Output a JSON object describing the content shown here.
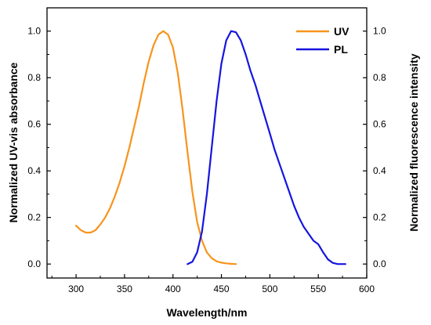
{
  "chart_data": {
    "type": "line",
    "xlabel": "Wavelength/nm",
    "ylabel_left": "Normalized UV-vis absorbance",
    "ylabel_right": "Normalized fluorescence intensity",
    "xlim": [
      270,
      600
    ],
    "ylim": [
      -0.06,
      1.1
    ],
    "x_ticks": [
      300,
      350,
      400,
      450,
      500,
      550,
      600
    ],
    "x_tick_labels": [
      "300",
      "350",
      "400",
      "450",
      "500",
      "550",
      "600"
    ],
    "y_ticks": [
      0.0,
      0.2,
      0.4,
      0.6,
      0.8,
      1.0
    ],
    "y_tick_labels": [
      "0.0",
      "0.2",
      "0.4",
      "0.6",
      "0.8",
      "1.0"
    ],
    "legend_position": "top-right",
    "series": [
      {
        "name": "UV",
        "color": "#F7941D",
        "x": [
          300,
          305,
          310,
          315,
          320,
          325,
          330,
          335,
          340,
          345,
          350,
          355,
          360,
          365,
          370,
          375,
          380,
          385,
          390,
          395,
          400,
          405,
          410,
          415,
          420,
          425,
          430,
          435,
          440,
          445,
          450,
          455,
          460,
          465
        ],
        "y": [
          0.165,
          0.145,
          0.135,
          0.135,
          0.145,
          0.17,
          0.2,
          0.24,
          0.29,
          0.35,
          0.42,
          0.5,
          0.59,
          0.68,
          0.78,
          0.87,
          0.94,
          0.985,
          1.0,
          0.985,
          0.93,
          0.82,
          0.66,
          0.48,
          0.31,
          0.18,
          0.1,
          0.05,
          0.025,
          0.012,
          0.006,
          0.003,
          0.001,
          0.0
        ]
      },
      {
        "name": "PL",
        "color": "#1515E0",
        "x": [
          415,
          420,
          425,
          430,
          435,
          440,
          445,
          450,
          455,
          460,
          465,
          470,
          475,
          480,
          485,
          490,
          495,
          500,
          505,
          510,
          515,
          520,
          525,
          530,
          535,
          540,
          545,
          550,
          555,
          560,
          565,
          570,
          575,
          578
        ],
        "y": [
          0.0,
          0.01,
          0.05,
          0.14,
          0.3,
          0.5,
          0.7,
          0.86,
          0.96,
          1.0,
          0.995,
          0.96,
          0.9,
          0.83,
          0.77,
          0.7,
          0.63,
          0.56,
          0.49,
          0.43,
          0.37,
          0.31,
          0.25,
          0.2,
          0.16,
          0.13,
          0.1,
          0.085,
          0.05,
          0.02,
          0.005,
          0.0,
          0.0,
          0.0
        ]
      }
    ]
  }
}
